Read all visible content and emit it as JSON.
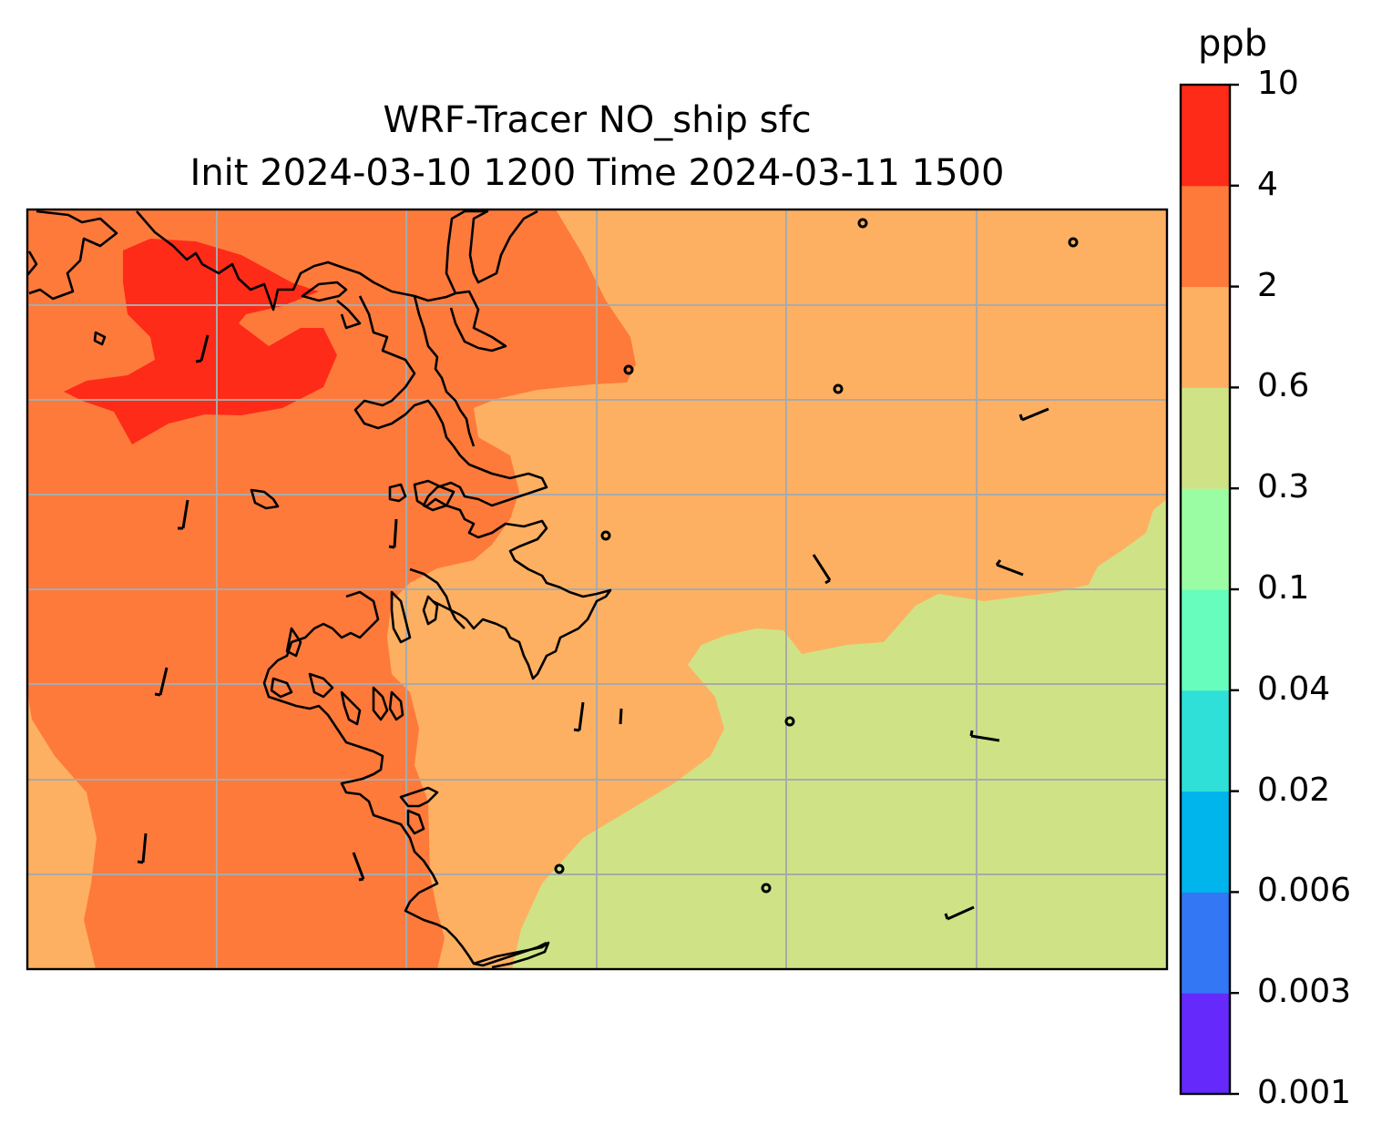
{
  "title": {
    "line1": "WRF-Tracer NO_ship sfc",
    "line2": "Init 2024-03-10 1200 Time 2024-03-11 1500"
  },
  "colorbar": {
    "unit": "ppb",
    "levels": [
      "0.001",
      "0.003",
      "0.006",
      "0.02",
      "0.04",
      "0.1",
      "0.3",
      "0.6",
      "2",
      "4",
      "10"
    ],
    "colors": [
      "#6529fb",
      "#3377f5",
      "#00b4ec",
      "#2fe0d8",
      "#67fdbc",
      "#9bfda3",
      "#cfe386",
      "#feb062",
      "#fe7a3b",
      "#fe2b18"
    ]
  },
  "map": {
    "land_fill_colors": {
      "level_0.3_0.6": "#cfe386",
      "level_0.6_2": "#feb062",
      "level_2_4": "#fe7a3b",
      "level_4_10": "#fe2b18"
    },
    "coastline_color": "#000000",
    "gridline_color": "#aaaaaa",
    "wind_barbs": [
      "barb",
      "calm-circle"
    ]
  }
}
